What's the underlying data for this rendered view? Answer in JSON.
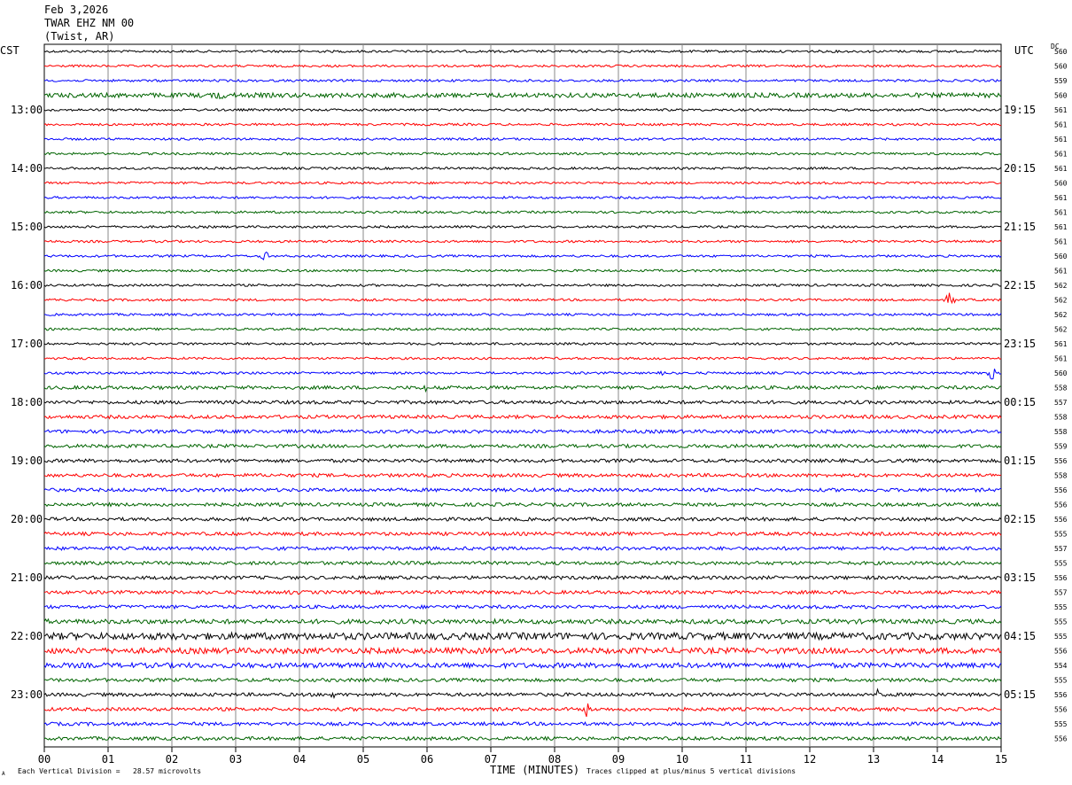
{
  "header": {
    "date": "Feb 3,2026",
    "station": "TWAR EHZ NM 00",
    "location": "(Twist, AR)"
  },
  "left_title": "CST",
  "right_title": "UTC",
  "dc_title": "DC",
  "footer": {
    "scale": "Each Vertical Division =   28.57 microvolts",
    "clip": "Traces clipped at plus/minus 5 vertical divisions",
    "mark": "A"
  },
  "chart_data": {
    "type": "line",
    "title": "",
    "xlabel": "TIME (MINUTES)",
    "ylabel": "",
    "x_ticks": [
      "00",
      "01",
      "02",
      "03",
      "04",
      "05",
      "06",
      "07",
      "08",
      "09",
      "10",
      "11",
      "12",
      "13",
      "14",
      "15"
    ],
    "xlim": [
      0,
      15
    ],
    "grid": true,
    "trace_colors": [
      "#000000",
      "#ff0000",
      "#0000ff",
      "#006400"
    ],
    "trace_count": 48,
    "left_hour_labels": [
      {
        "trace": 4,
        "label": "13:00"
      },
      {
        "trace": 8,
        "label": "14:00"
      },
      {
        "trace": 12,
        "label": "15:00"
      },
      {
        "trace": 16,
        "label": "16:00"
      },
      {
        "trace": 20,
        "label": "17:00"
      },
      {
        "trace": 24,
        "label": "18:00"
      },
      {
        "trace": 28,
        "label": "19:00"
      },
      {
        "trace": 32,
        "label": "20:00"
      },
      {
        "trace": 36,
        "label": "21:00"
      },
      {
        "trace": 40,
        "label": "22:00"
      },
      {
        "trace": 44,
        "label": "23:00"
      }
    ],
    "right_hour_labels": [
      {
        "trace": 4,
        "label": "19:15"
      },
      {
        "trace": 8,
        "label": "20:15"
      },
      {
        "trace": 12,
        "label": "21:15"
      },
      {
        "trace": 16,
        "label": "22:15"
      },
      {
        "trace": 20,
        "label": "23:15"
      },
      {
        "trace": 24,
        "label": "00:15"
      },
      {
        "trace": 28,
        "label": "01:15"
      },
      {
        "trace": 32,
        "label": "02:15"
      },
      {
        "trace": 36,
        "label": "03:15"
      },
      {
        "trace": 40,
        "label": "04:15"
      },
      {
        "trace": 44,
        "label": "05:15"
      }
    ],
    "dc_values": [
      "560",
      "560",
      "559",
      "560",
      "561",
      "561",
      "561",
      "561",
      "561",
      "560",
      "561",
      "561",
      "561",
      "561",
      "560",
      "561",
      "562",
      "562",
      "562",
      "562",
      "561",
      "561",
      "560",
      "558",
      "557",
      "558",
      "558",
      "559",
      "556",
      "558",
      "556",
      "556",
      "556",
      "555",
      "557",
      "555",
      "556",
      "557",
      "555",
      "555",
      "555",
      "556",
      "554",
      "555",
      "556",
      "556",
      "555",
      "556"
    ],
    "noise_level": [
      1,
      1,
      1,
      2,
      1,
      1,
      1,
      1,
      1,
      1,
      1,
      1,
      1,
      1,
      1,
      1,
      1,
      1,
      1,
      1,
      1,
      1,
      1,
      1.5,
      1.5,
      1.5,
      1.5,
      1.5,
      1.5,
      1.5,
      1.5,
      1.5,
      1.5,
      1.5,
      1.5,
      1.5,
      1.5,
      1.5,
      1.5,
      2,
      3,
      2.5,
      2.2,
      1.5,
      1.5,
      1.5,
      1.5,
      1.5
    ],
    "events": [
      {
        "trace": 3,
        "minute": 2.75,
        "amp": 6
      },
      {
        "trace": 14,
        "minute": 3.45,
        "amp": 6
      },
      {
        "trace": 17,
        "minute": 14.2,
        "amp": 8
      },
      {
        "trace": 22,
        "minute": 14.85,
        "amp": 8
      },
      {
        "trace": 22,
        "minute": 9.7,
        "amp": 4
      },
      {
        "trace": 45,
        "minute": 8.5,
        "amp": 10
      },
      {
        "trace": 44,
        "minute": 13.05,
        "amp": 6
      },
      {
        "trace": 44,
        "minute": 4.55,
        "amp": 5
      },
      {
        "trace": 37,
        "minute": 3.9,
        "amp": 4
      },
      {
        "trace": 23,
        "minute": 5.95,
        "amp": 4
      }
    ]
  }
}
